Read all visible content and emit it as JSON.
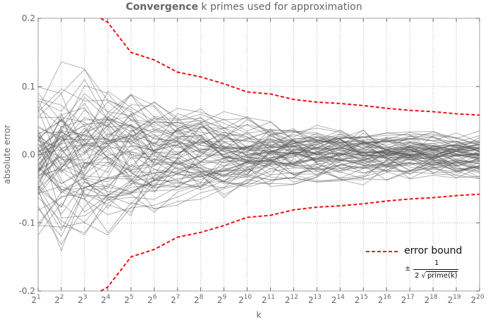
{
  "chart_data": {
    "type": "line",
    "title_bold": "Convergence",
    "title_rest": "k primes used for approximation",
    "xlabel": "k",
    "ylabel": "absolute error",
    "x_scale": "log2",
    "x_ticks_exponent": [
      1,
      2,
      3,
      4,
      5,
      6,
      7,
      8,
      9,
      10,
      11,
      12,
      13,
      14,
      15,
      16,
      17,
      18,
      19,
      20
    ],
    "ylim": [
      -0.2,
      0.2
    ],
    "y_ticks": [
      -0.2,
      -0.1,
      0.0,
      0.1,
      0.2
    ],
    "y_tick_labels": [
      "-0.2",
      "-0.1",
      "0.0",
      "0.1",
      "0.2"
    ],
    "grid": true,
    "legend_position": "bottom-right",
    "series": [
      {
        "name": "error bound",
        "style": "dashed",
        "color": "#ee1111",
        "x_exponent": [
          4,
          5,
          6,
          7,
          8,
          9,
          10,
          11,
          12,
          13,
          14,
          15,
          16,
          17,
          18,
          19,
          20
        ],
        "upper": [
          0.194,
          0.15,
          0.139,
          0.121,
          0.114,
          0.104,
          0.092,
          0.089,
          0.081,
          0.077,
          0.075,
          0.072,
          0.068,
          0.065,
          0.063,
          0.06,
          0.058
        ],
        "lower": [
          -0.194,
          -0.15,
          -0.139,
          -0.121,
          -0.114,
          -0.104,
          -0.092,
          -0.089,
          -0.081,
          -0.077,
          -0.075,
          -0.072,
          -0.068,
          -0.065,
          -0.063,
          -0.06,
          -0.058
        ]
      },
      {
        "name": "",
        "style": "solid",
        "color": "#555555",
        "description_count": 80,
        "note": "many grey sample error trajectories"
      }
    ],
    "legend_formula": {
      "pm": "±",
      "numerator": "1",
      "denominator_prefix": "2",
      "denominator_root": "prime(k)"
    }
  },
  "colors": {
    "bound": "#ee1111",
    "trace": "#555555",
    "grid": "#b5b5b5",
    "axis": "#666666"
  }
}
